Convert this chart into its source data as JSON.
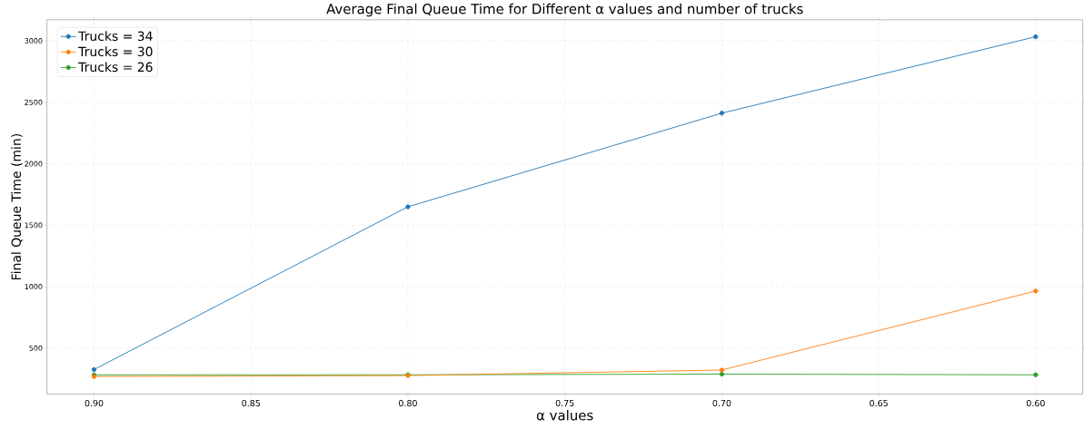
{
  "chart_data": {
    "type": "line",
    "title": "Average Final Queue Time for Different α values and number of trucks",
    "xlabel": "α values",
    "ylabel": "Final Queue Time (min)",
    "x": [
      0.9,
      0.8,
      0.7,
      0.6
    ],
    "series": [
      {
        "name": "Trucks = 34",
        "color": "#1f77b4",
        "values": [
          326,
          1650,
          2412,
          3034
        ]
      },
      {
        "name": "Trucks = 30",
        "color": "#ff7f0e",
        "values": [
          269,
          277,
          322,
          965
        ]
      },
      {
        "name": "Trucks = 26",
        "color": "#2ca02c",
        "values": [
          283,
          283,
          289,
          283
        ]
      }
    ],
    "xlim": [
      0.915,
      0.585
    ],
    "ylim": [
      127,
      3172
    ],
    "xticks": [
      {
        "value": 0.9,
        "label": "0.90"
      },
      {
        "value": 0.85,
        "label": "0.85"
      },
      {
        "value": 0.8,
        "label": "0.80"
      },
      {
        "value": 0.75,
        "label": "0.75"
      },
      {
        "value": 0.7,
        "label": "0.70"
      },
      {
        "value": 0.65,
        "label": "0.65"
      },
      {
        "value": 0.6,
        "label": "0.60"
      }
    ],
    "yticks": [
      500,
      1000,
      1500,
      2000,
      2500,
      3000
    ],
    "grid": true,
    "legend": "top left",
    "marker": "circle",
    "line_style": "solid"
  }
}
